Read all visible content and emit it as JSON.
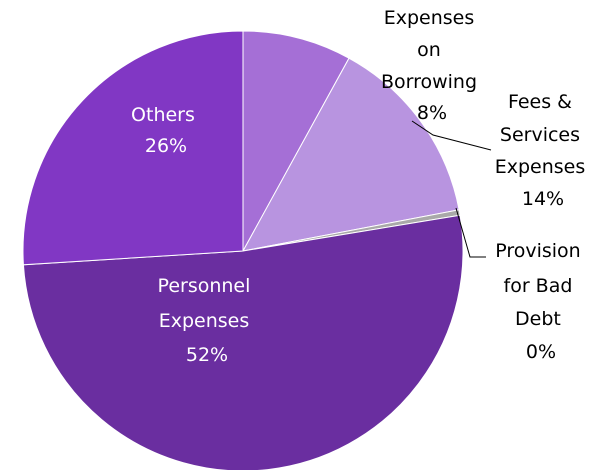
{
  "chart_data": {
    "type": "pie",
    "title": "",
    "slices": [
      {
        "label": "Expenses on Borrowing",
        "value": 8,
        "pct_text": "8%",
        "color": "#a56fd6"
      },
      {
        "label": "Fees & Services Expenses",
        "value": 14,
        "pct_text": "14%",
        "color": "#b894e0"
      },
      {
        "label": "Provision for Bad Debt",
        "value": 0.4,
        "pct_text": "0%",
        "color": "#a9a9a9"
      },
      {
        "label": "Personnel Expenses",
        "value": 51.6,
        "pct_text": "52%",
        "color": "#6a2ea0"
      },
      {
        "label": "Others",
        "value": 26,
        "pct_text": "26%",
        "color": "#8137c4"
      }
    ],
    "start_angle_deg": 0,
    "direction": "clockwise",
    "edge_color": "#ffffff",
    "leader_color": "#000000"
  },
  "labels": {
    "expenses_on_borrowing": [
      "Expenses",
      "on",
      "Borrowing",
      "8%"
    ],
    "fees_services": [
      "Fees &",
      "Services",
      "Expenses",
      "14%"
    ],
    "provision_bad_debt": [
      "Provision",
      "for Bad",
      "Debt",
      "0%"
    ],
    "personnel": [
      "Personnel",
      "Expenses",
      "52%"
    ],
    "others": [
      "Others",
      "26%"
    ]
  }
}
